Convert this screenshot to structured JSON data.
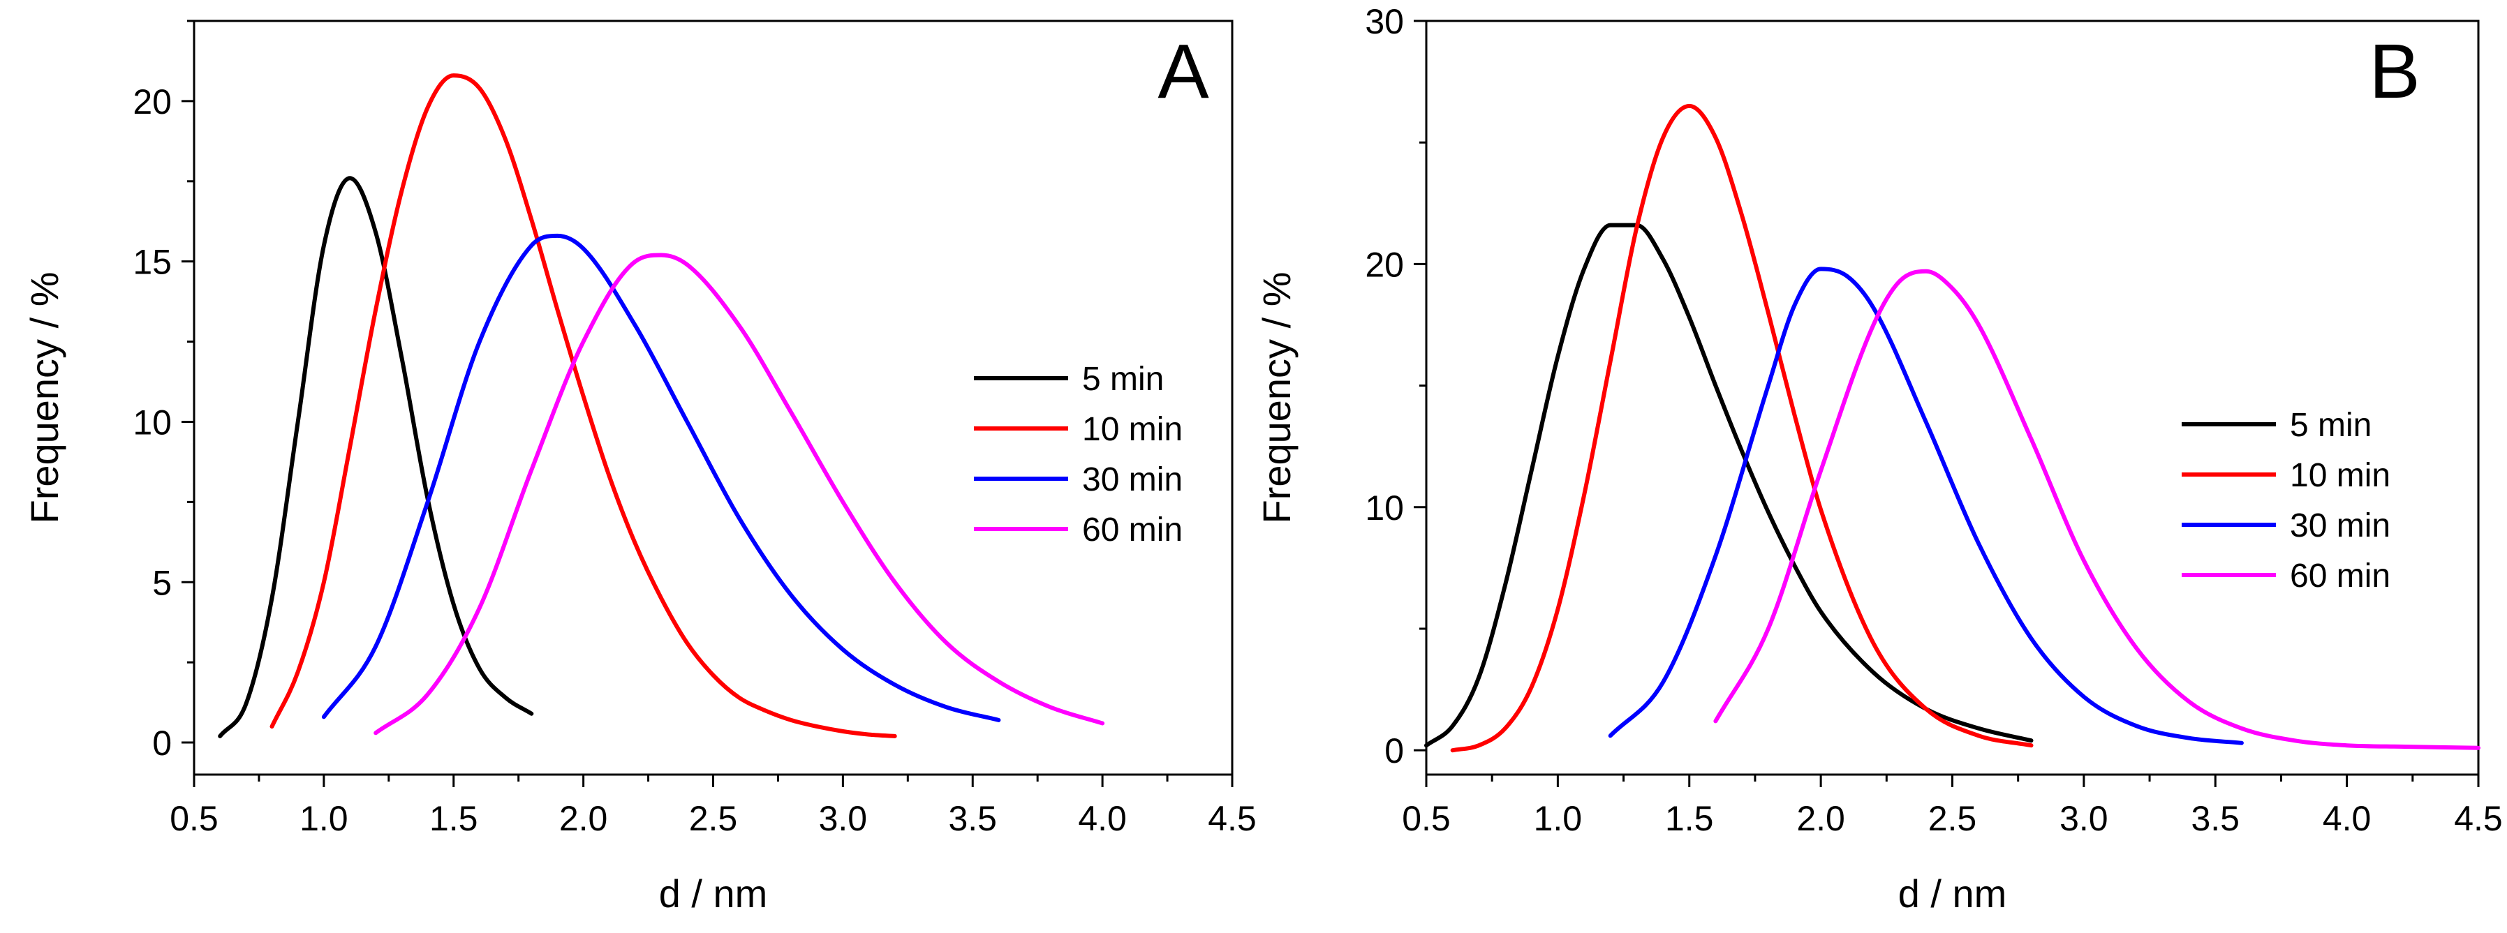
{
  "chart_data": [
    {
      "type": "line",
      "panel_label": "A",
      "xlabel": "d / nm",
      "ylabel": "Frequency / %",
      "xlim": [
        0.5,
        4.5
      ],
      "ylim": [
        -1,
        22.5
      ],
      "xticks": [
        0.5,
        1.0,
        1.5,
        2.0,
        2.5,
        3.0,
        3.5,
        4.0,
        4.5
      ],
      "xtick_labels": [
        "0.5",
        "1.0",
        "1.5",
        "2.0",
        "2.5",
        "3.0",
        "3.5",
        "4.0",
        "4.5"
      ],
      "yticks": [
        0,
        5,
        10,
        15,
        20
      ],
      "ytick_labels": [
        "0",
        "5",
        "10",
        "15",
        "20"
      ],
      "legend_position": "right-middle",
      "series": [
        {
          "name": "5 min",
          "color": "#000000",
          "x": [
            0.6,
            0.7,
            0.8,
            0.9,
            1.0,
            1.1,
            1.2,
            1.3,
            1.4,
            1.5,
            1.6,
            1.7,
            1.8
          ],
          "y": [
            0.2,
            1.2,
            4.5,
            10.0,
            15.5,
            17.6,
            15.9,
            12.0,
            7.6,
            4.3,
            2.3,
            1.4,
            0.9
          ]
        },
        {
          "name": "10 min",
          "color": "#ff0000",
          "x": [
            0.8,
            0.9,
            1.0,
            1.1,
            1.2,
            1.3,
            1.4,
            1.5,
            1.6,
            1.7,
            1.8,
            1.9,
            2.0,
            2.1,
            2.2,
            2.3,
            2.4,
            2.5,
            2.6,
            2.7,
            2.8,
            2.9,
            3.0,
            3.1,
            3.2
          ],
          "y": [
            0.5,
            2.2,
            5.0,
            9.2,
            13.5,
            17.2,
            19.8,
            20.8,
            20.4,
            18.8,
            16.3,
            13.5,
            10.8,
            8.3,
            6.2,
            4.5,
            3.1,
            2.1,
            1.4,
            1.0,
            0.7,
            0.5,
            0.35,
            0.25,
            0.2
          ]
        },
        {
          "name": "30 min",
          "color": "#0000ff",
          "x": [
            1.0,
            1.2,
            1.4,
            1.6,
            1.8,
            1.9,
            2.0,
            2.2,
            2.4,
            2.6,
            2.8,
            3.0,
            3.2,
            3.4,
            3.6
          ],
          "y": [
            0.8,
            3.0,
            7.5,
            12.5,
            15.5,
            15.8,
            15.4,
            13.0,
            10.0,
            7.0,
            4.6,
            2.9,
            1.8,
            1.1,
            0.7
          ]
        },
        {
          "name": "60 min",
          "color": "#ff00ff",
          "x": [
            1.2,
            1.4,
            1.6,
            1.8,
            2.0,
            2.2,
            2.3,
            2.4,
            2.6,
            2.8,
            3.0,
            3.2,
            3.4,
            3.6,
            3.8,
            4.0
          ],
          "y": [
            0.3,
            1.5,
            4.2,
            8.5,
            12.5,
            15.0,
            15.2,
            14.9,
            13.0,
            10.3,
            7.5,
            5.0,
            3.1,
            1.9,
            1.1,
            0.6
          ]
        }
      ]
    },
    {
      "type": "line",
      "panel_label": "B",
      "xlabel": "d / nm",
      "ylabel": "Frequency / %",
      "xlim": [
        0.5,
        4.5
      ],
      "ylim": [
        -1,
        30
      ],
      "xticks": [
        0.5,
        1.0,
        1.5,
        2.0,
        2.5,
        3.0,
        3.5,
        4.0,
        4.5
      ],
      "xtick_labels": [
        "0.5",
        "1.0",
        "1.5",
        "2.0",
        "2.5",
        "3.0",
        "3.5",
        "4.0",
        "4.5"
      ],
      "yticks": [
        0,
        10,
        20,
        30
      ],
      "ytick_labels": [
        "0",
        "10",
        "20",
        "30"
      ],
      "legend_position": "right-middle",
      "series": [
        {
          "name": "5 min",
          "color": "#000000",
          "x": [
            0.5,
            0.6,
            0.7,
            0.8,
            0.9,
            1.0,
            1.1,
            1.2,
            1.3,
            1.4,
            1.5,
            1.6,
            1.7,
            1.8,
            1.9,
            2.0,
            2.2,
            2.4,
            2.6,
            2.8
          ],
          "y": [
            0.2,
            1.0,
            3.0,
            6.8,
            11.5,
            16.2,
            19.8,
            21.6,
            21.6,
            20.2,
            17.8,
            15.0,
            12.3,
            9.8,
            7.6,
            5.7,
            3.2,
            1.7,
            0.9,
            0.4
          ]
        },
        {
          "name": "10 min",
          "color": "#ff0000",
          "x": [
            0.6,
            0.7,
            0.8,
            0.9,
            1.0,
            1.1,
            1.2,
            1.3,
            1.4,
            1.5,
            1.6,
            1.7,
            1.8,
            1.9,
            2.0,
            2.2,
            2.4,
            2.6,
            2.8
          ],
          "y": [
            0.0,
            0.2,
            0.9,
            2.6,
            5.8,
            10.5,
            16.0,
            21.5,
            25.2,
            26.5,
            25.2,
            22.0,
            18.0,
            13.8,
            9.9,
            4.4,
            1.7,
            0.6,
            0.2
          ]
        },
        {
          "name": "30 min",
          "color": "#0000ff",
          "x": [
            1.2,
            1.4,
            1.6,
            1.8,
            1.9,
            2.0,
            2.1,
            2.2,
            2.4,
            2.6,
            2.8,
            3.0,
            3.2,
            3.4,
            3.6
          ],
          "y": [
            0.6,
            2.8,
            8.0,
            15.0,
            18.3,
            19.8,
            19.5,
            18.2,
            13.5,
            8.5,
            4.6,
            2.2,
            1.0,
            0.5,
            0.3
          ]
        },
        {
          "name": "60 min",
          "color": "#ff00ff",
          "x": [
            1.6,
            1.8,
            2.0,
            2.2,
            2.3,
            2.4,
            2.5,
            2.6,
            2.8,
            3.0,
            3.2,
            3.4,
            3.6,
            3.8,
            4.0,
            4.2,
            4.5
          ],
          "y": [
            1.2,
            5.0,
            11.5,
            17.5,
            19.3,
            19.7,
            19.0,
            17.5,
            12.8,
            7.8,
            4.2,
            2.0,
            0.9,
            0.4,
            0.2,
            0.15,
            0.1
          ]
        }
      ]
    }
  ]
}
